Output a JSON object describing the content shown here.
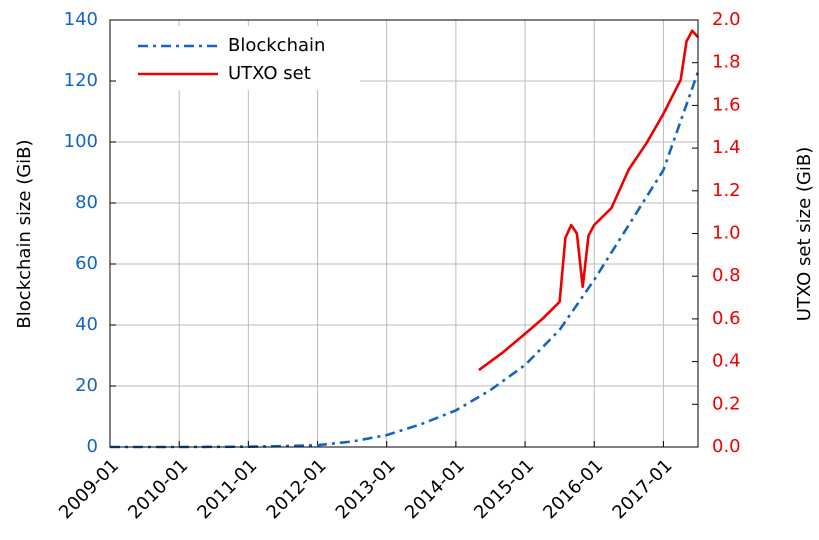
{
  "chart_data": {
    "type": "line",
    "xlim": [
      "2009-01",
      "2017-07"
    ],
    "xticks": [
      "2009-01",
      "2010-01",
      "2011-01",
      "2012-01",
      "2013-01",
      "2014-01",
      "2015-01",
      "2016-01",
      "2017-01"
    ],
    "ylabel": "Blockchain size (GiB)",
    "y2label": "UTXO set size (GiB)",
    "ylim": [
      0,
      140
    ],
    "yticks": [
      0,
      20,
      40,
      60,
      80,
      100,
      120,
      140
    ],
    "y2lim": [
      0,
      2
    ],
    "y2ticks": [
      {
        "value": 0,
        "label": "0.0"
      },
      0.2,
      0.4,
      0.6,
      0.8,
      {
        "value": 1,
        "label": "1.0"
      },
      1.2,
      1.4,
      1.6,
      1.8,
      {
        "value": 2,
        "label": "2.0"
      }
    ],
    "grid": true,
    "legend": "upper left",
    "series": [
      {
        "name": "Blockchain",
        "color": "#1565c0",
        "axis": "y",
        "x": [
          "2009-01",
          "2010-01",
          "2011-01",
          "2011-07",
          "2012-01",
          "2012-07",
          "2013-01",
          "2013-07",
          "2014-01",
          "2014-07",
          "2015-01",
          "2015-07",
          "2016-01",
          "2016-07",
          "2017-01",
          "2017-07"
        ],
        "values": [
          0,
          0,
          0.1,
          0.3,
          0.6,
          1.8,
          3.9,
          7.5,
          12,
          18.7,
          26.9,
          38.4,
          54.8,
          72.8,
          90.8,
          123
        ]
      },
      {
        "name": "UTXO set",
        "color": "#ee0000",
        "axis": "y2",
        "x": [
          "2014-05",
          "2014-09",
          "2015-01",
          "2015-04",
          "2015-07",
          "2015-08",
          "2015-09",
          "2015-10",
          "2015-11",
          "2015-12",
          "2016-01",
          "2016-04",
          "2016-07",
          "2016-10",
          "2017-01",
          "2017-04",
          "2017-05",
          "2017-06",
          "2017-07"
        ],
        "values": [
          0.36,
          0.44,
          0.53,
          0.6,
          0.68,
          0.98,
          1.04,
          1.0,
          0.75,
          0.99,
          1.04,
          1.12,
          1.3,
          1.42,
          1.56,
          1.72,
          1.9,
          1.95,
          1.92
        ]
      }
    ]
  }
}
